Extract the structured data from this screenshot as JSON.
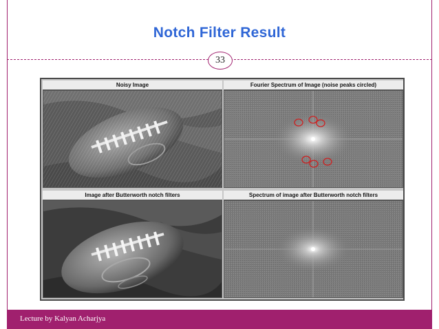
{
  "slide": {
    "title": "Notch Filter Result",
    "page_number": "33",
    "footer": "Lecture by Kalyan Acharjya"
  },
  "figure": {
    "panels": [
      {
        "title": "Noisy Image",
        "icon": "football-noisy-image"
      },
      {
        "title": "Fourier Spectrum of Image (noise peaks circled)",
        "icon": "fourier-spectrum-image"
      },
      {
        "title": "Image after Butterworth notch filters",
        "icon": "football-filtered-image"
      },
      {
        "title": "Spectrum of image after Butterworth notch filters",
        "icon": "filtered-spectrum-image"
      }
    ],
    "noise_peak_circle_color": "#cc2222",
    "accent_color": "#a0206e",
    "title_color": "#2f66d6"
  }
}
